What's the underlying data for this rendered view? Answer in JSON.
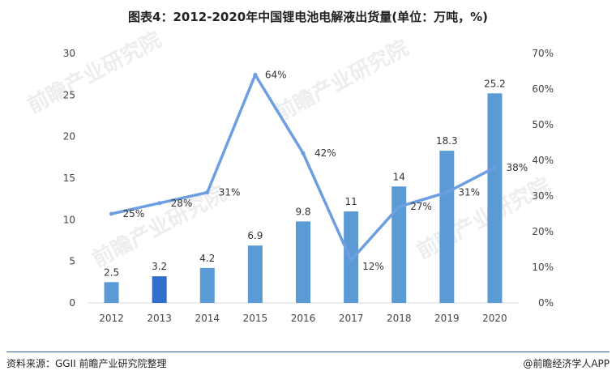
{
  "title": "图表4：2012-2020年中国锂电池电解液出货量(单位：万吨，%)",
  "watermark": "前瞻产业研究院",
  "footer": {
    "source": "资料来源：GGII 前瞻产业研究院整理",
    "brand": "@前瞻经济学人APP"
  },
  "colors": {
    "bar": "#5b9bd5",
    "bar_highlight": "#2f6ecb",
    "line": "#6d9ee1",
    "axis": "#d9d9d9"
  },
  "chart_data": {
    "type": "bar",
    "categories": [
      "2012",
      "2013",
      "2014",
      "2015",
      "2016",
      "2017",
      "2018",
      "2019",
      "2020"
    ],
    "series": [
      {
        "type": "bar",
        "axis": "left",
        "values": [
          2.5,
          3.2,
          4.2,
          6.9,
          9.8,
          11,
          14,
          18.3,
          25.2
        ],
        "labels": [
          "2.5",
          "3.2",
          "4.2",
          "6.9",
          "9.8",
          "11",
          "14",
          "18.3",
          "25.2"
        ],
        "highlight_index": 1
      },
      {
        "type": "line",
        "axis": "right",
        "values": [
          25,
          28,
          31,
          64,
          42,
          12,
          27,
          31,
          38
        ],
        "labels": [
          "25%",
          "28%",
          "31%",
          "64%",
          "42%",
          "12%",
          "27%",
          "31%",
          "38%"
        ]
      }
    ],
    "y_left": {
      "min": 0,
      "max": 30,
      "ticks": [
        0,
        5,
        10,
        15,
        20,
        25,
        30
      ],
      "tick_labels": [
        "0",
        "5",
        "10",
        "15",
        "20",
        "25",
        "30"
      ]
    },
    "y_right": {
      "min": 0,
      "max": 70,
      "ticks": [
        0,
        10,
        20,
        30,
        40,
        50,
        60,
        70
      ],
      "tick_labels": [
        "0%",
        "10%",
        "20%",
        "30%",
        "40%",
        "50%",
        "60%",
        "70%"
      ]
    },
    "grid": false,
    "legend": "none"
  }
}
